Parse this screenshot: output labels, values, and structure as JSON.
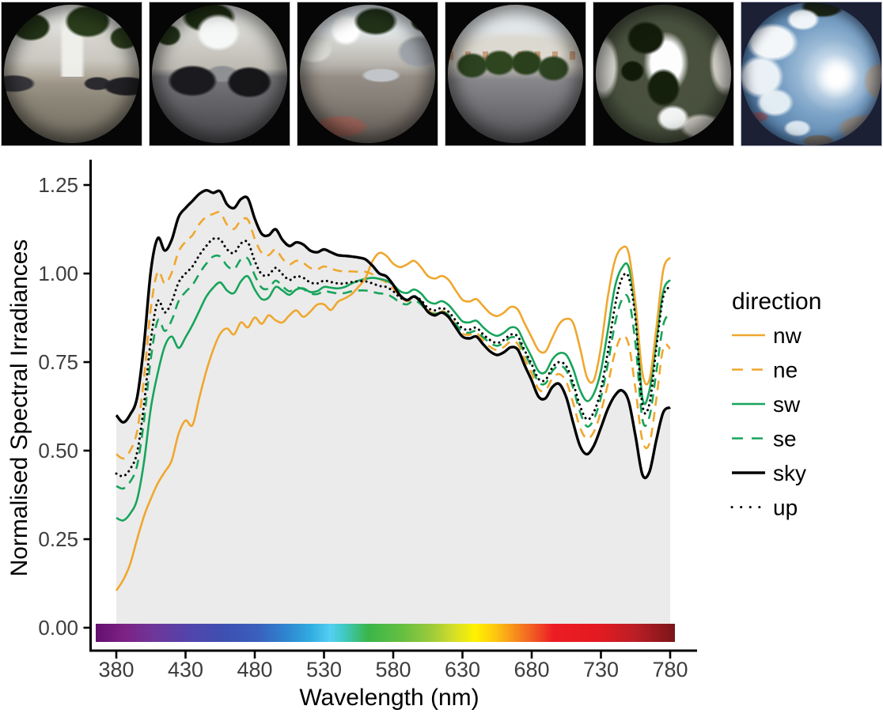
{
  "page": {
    "background": "#ffffff",
    "photo_row": {
      "photos": [
        {
          "id": 1,
          "description": "fisheye street-level photo: car park, trees and white apartment blocks"
        },
        {
          "id": 2,
          "description": "fisheye street-level photo: parked motorcycles between apartment blocks"
        },
        {
          "id": 3,
          "description": "fisheye street-level photo: silver car, red road markings, buildings and cloudy sky"
        },
        {
          "id": 4,
          "description": "fisheye street-level photo: apartment block facade behind round trees, wide road"
        },
        {
          "id": 5,
          "description": "upward fisheye photo: bright sky through dark trees between tower blocks"
        },
        {
          "id": 6,
          "description": "upward fisheye photo: blue sky, clouds and bright sun beside a tower block"
        }
      ]
    }
  },
  "chart_data": {
    "type": "line",
    "title": "",
    "xlabel": "Wavelength (nm)",
    "ylabel": "Normalised Spectral Irradiances",
    "x_start": 380,
    "x_step": 5,
    "x_end": 780,
    "x_ticks": [
      380,
      430,
      480,
      530,
      580,
      630,
      680,
      730,
      780
    ],
    "y_ticks": [
      0,
      0.25,
      0.5,
      0.75,
      1,
      1.25
    ],
    "y_tick_labels": [
      "0.00",
      "0.25",
      "0.50",
      "0.75",
      "1.00",
      "1.25"
    ],
    "xlim": [
      368,
      799
    ],
    "ylim": [
      -0.075,
      1.29
    ],
    "grid": false,
    "legend": {
      "title": "direction",
      "position": "right",
      "entries": [
        "nw",
        "ne",
        "sw",
        "se",
        "sky",
        "up"
      ]
    },
    "fill_under_series": "sky",
    "fill_color": "#EBEBEB",
    "axis_color": "#000000",
    "tick_label_color": "#3D3D3D",
    "spectrum_bar": {
      "stops": [
        {
          "pos": 0.0,
          "color": "#641070"
        },
        {
          "pos": 0.05,
          "color": "#7d2285"
        },
        {
          "pos": 0.1,
          "color": "#6f3699"
        },
        {
          "pos": 0.16,
          "color": "#5344ab"
        },
        {
          "pos": 0.22,
          "color": "#3f4fb1"
        },
        {
          "pos": 0.28,
          "color": "#3960bc"
        },
        {
          "pos": 0.33,
          "color": "#2f86d0"
        },
        {
          "pos": 0.37,
          "color": "#2fabe0"
        },
        {
          "pos": 0.405,
          "color": "#55cff2"
        },
        {
          "pos": 0.43,
          "color": "#3fc9c0"
        },
        {
          "pos": 0.47,
          "color": "#3ab54a"
        },
        {
          "pos": 0.53,
          "color": "#66bf41"
        },
        {
          "pos": 0.58,
          "color": "#9ccb3b"
        },
        {
          "pos": 0.62,
          "color": "#d7df26"
        },
        {
          "pos": 0.655,
          "color": "#fff200"
        },
        {
          "pos": 0.69,
          "color": "#fdc70f"
        },
        {
          "pos": 0.72,
          "color": "#f7941d"
        },
        {
          "pos": 0.755,
          "color": "#f15a24"
        },
        {
          "pos": 0.79,
          "color": "#ed1c24"
        },
        {
          "pos": 0.87,
          "color": "#e21a21"
        },
        {
          "pos": 0.93,
          "color": "#bc1f26"
        },
        {
          "pos": 1.0,
          "color": "#7a1519"
        }
      ]
    },
    "series": [
      {
        "name": "nw",
        "color": "#EFA72E",
        "dash": "solid",
        "values": [
          0.105,
          0.135,
          0.18,
          0.25,
          0.315,
          0.365,
          0.408,
          0.44,
          0.472,
          0.548,
          0.585,
          0.572,
          0.65,
          0.725,
          0.785,
          0.83,
          0.845,
          0.828,
          0.862,
          0.848,
          0.876,
          0.858,
          0.882,
          0.868,
          0.862,
          0.882,
          0.896,
          0.878,
          0.892,
          0.912,
          0.913,
          0.897,
          0.92,
          0.93,
          0.942,
          0.963,
          0.988,
          1.035,
          1.058,
          1.05,
          1.028,
          1.018,
          1.026,
          1.036,
          1.018,
          0.993,
          0.986,
          0.993,
          0.982,
          0.953,
          0.926,
          0.921,
          0.928,
          0.908,
          0.888,
          0.88,
          0.89,
          0.906,
          0.898,
          0.858,
          0.82,
          0.783,
          0.78,
          0.82,
          0.858,
          0.872,
          0.86,
          0.788,
          0.706,
          0.7,
          0.792,
          0.935,
          1.035,
          1.072,
          1.058,
          0.915,
          0.718,
          0.7,
          0.845,
          1.01,
          1.045
        ]
      },
      {
        "name": "ne",
        "color": "#EFA72E",
        "dash": "dashed",
        "values": [
          0.49,
          0.478,
          0.5,
          0.555,
          0.705,
          0.905,
          1.005,
          0.972,
          1.002,
          1.062,
          1.09,
          1.108,
          1.14,
          1.16,
          1.168,
          1.172,
          1.138,
          1.126,
          1.15,
          1.152,
          1.098,
          1.058,
          1.052,
          1.068,
          1.042,
          1.026,
          1.036,
          1.03,
          1.016,
          1.012,
          1.02,
          1.014,
          1.008,
          1.006,
          1.006,
          1.005,
          1.005,
          0.998,
          0.985,
          0.975,
          0.958,
          0.936,
          0.922,
          0.932,
          0.92,
          0.896,
          0.888,
          0.895,
          0.883,
          0.857,
          0.831,
          0.827,
          0.832,
          0.811,
          0.793,
          0.784,
          0.793,
          0.808,
          0.801,
          0.758,
          0.718,
          0.674,
          0.67,
          0.704,
          0.716,
          0.694,
          0.634,
          0.564,
          0.534,
          0.554,
          0.61,
          0.688,
          0.775,
          0.822,
          0.8,
          0.672,
          0.528,
          0.52,
          0.645,
          0.79,
          0.788
        ]
      },
      {
        "name": "sw",
        "color": "#17A45B",
        "dash": "solid",
        "values": [
          0.31,
          0.303,
          0.322,
          0.362,
          0.468,
          0.622,
          0.72,
          0.795,
          0.822,
          0.79,
          0.82,
          0.855,
          0.895,
          0.935,
          0.96,
          0.975,
          0.952,
          0.945,
          0.978,
          0.992,
          0.955,
          0.928,
          0.932,
          0.962,
          0.952,
          0.94,
          0.955,
          0.958,
          0.948,
          0.95,
          0.962,
          0.96,
          0.958,
          0.962,
          0.972,
          0.98,
          0.985,
          0.988,
          0.985,
          0.98,
          0.968,
          0.95,
          0.945,
          0.955,
          0.944,
          0.922,
          0.915,
          0.922,
          0.911,
          0.888,
          0.865,
          0.862,
          0.867,
          0.848,
          0.832,
          0.824,
          0.833,
          0.848,
          0.842,
          0.802,
          0.764,
          0.724,
          0.722,
          0.758,
          0.775,
          0.77,
          0.73,
          0.67,
          0.64,
          0.662,
          0.725,
          0.84,
          0.96,
          1.015,
          1.018,
          0.89,
          0.648,
          0.67,
          0.81,
          0.95,
          0.982
        ]
      },
      {
        "name": "se",
        "color": "#17A45B",
        "dash": "dashed",
        "values": [
          0.4,
          0.393,
          0.412,
          0.458,
          0.585,
          0.762,
          0.868,
          0.838,
          0.868,
          0.922,
          0.948,
          0.968,
          1.0,
          1.028,
          1.048,
          1.048,
          1.022,
          1.012,
          1.04,
          1.042,
          0.995,
          0.96,
          0.958,
          0.98,
          0.964,
          0.95,
          0.96,
          0.956,
          0.944,
          0.942,
          0.95,
          0.947,
          0.944,
          0.945,
          0.95,
          0.952,
          0.952,
          0.948,
          0.944,
          0.942,
          0.932,
          0.918,
          0.913,
          0.924,
          0.913,
          0.892,
          0.886,
          0.893,
          0.882,
          0.858,
          0.836,
          0.833,
          0.838,
          0.82,
          0.804,
          0.796,
          0.805,
          0.82,
          0.814,
          0.774,
          0.735,
          0.693,
          0.69,
          0.725,
          0.74,
          0.726,
          0.676,
          0.608,
          0.568,
          0.59,
          0.65,
          0.745,
          0.855,
          0.925,
          0.928,
          0.8,
          0.588,
          0.596,
          0.722,
          0.855,
          0.888
        ]
      },
      {
        "name": "sky",
        "color": "#000000",
        "dash": "solid",
        "values": [
          0.6,
          0.58,
          0.602,
          0.65,
          0.8,
          1.01,
          1.1,
          1.065,
          1.095,
          1.16,
          1.185,
          1.205,
          1.225,
          1.235,
          1.228,
          1.232,
          1.195,
          1.185,
          1.21,
          1.212,
          1.155,
          1.112,
          1.108,
          1.125,
          1.095,
          1.078,
          1.088,
          1.082,
          1.065,
          1.06,
          1.068,
          1.06,
          1.052,
          1.05,
          1.048,
          1.045,
          1.04,
          1.022,
          1.0,
          0.992,
          0.968,
          0.938,
          0.925,
          0.935,
          0.92,
          0.892,
          0.882,
          0.89,
          0.877,
          0.849,
          0.822,
          0.817,
          0.822,
          0.8,
          0.78,
          0.77,
          0.778,
          0.792,
          0.785,
          0.74,
          0.698,
          0.652,
          0.648,
          0.68,
          0.688,
          0.65,
          0.578,
          0.512,
          0.49,
          0.515,
          0.565,
          0.618,
          0.655,
          0.67,
          0.64,
          0.54,
          0.432,
          0.44,
          0.53,
          0.608,
          0.622
        ]
      },
      {
        "name": "up",
        "color": "#000000",
        "dash": "dotted",
        "values": [
          0.435,
          0.428,
          0.448,
          0.495,
          0.63,
          0.815,
          0.922,
          0.89,
          0.92,
          0.975,
          1.0,
          1.02,
          1.052,
          1.078,
          1.098,
          1.096,
          1.068,
          1.058,
          1.085,
          1.088,
          1.035,
          0.998,
          0.996,
          1.016,
          0.998,
          0.982,
          0.992,
          0.988,
          0.975,
          0.972,
          0.98,
          0.976,
          0.972,
          0.972,
          0.976,
          0.978,
          0.978,
          0.972,
          0.965,
          0.962,
          0.95,
          0.932,
          0.926,
          0.936,
          0.925,
          0.903,
          0.896,
          0.903,
          0.892,
          0.868,
          0.845,
          0.842,
          0.847,
          0.828,
          0.812,
          0.804,
          0.813,
          0.828,
          0.822,
          0.782,
          0.744,
          0.702,
          0.7,
          0.735,
          0.75,
          0.738,
          0.69,
          0.625,
          0.588,
          0.61,
          0.672,
          0.78,
          0.905,
          0.985,
          0.99,
          0.87,
          0.628,
          0.632,
          0.79,
          0.935,
          0.962
        ]
      }
    ]
  }
}
